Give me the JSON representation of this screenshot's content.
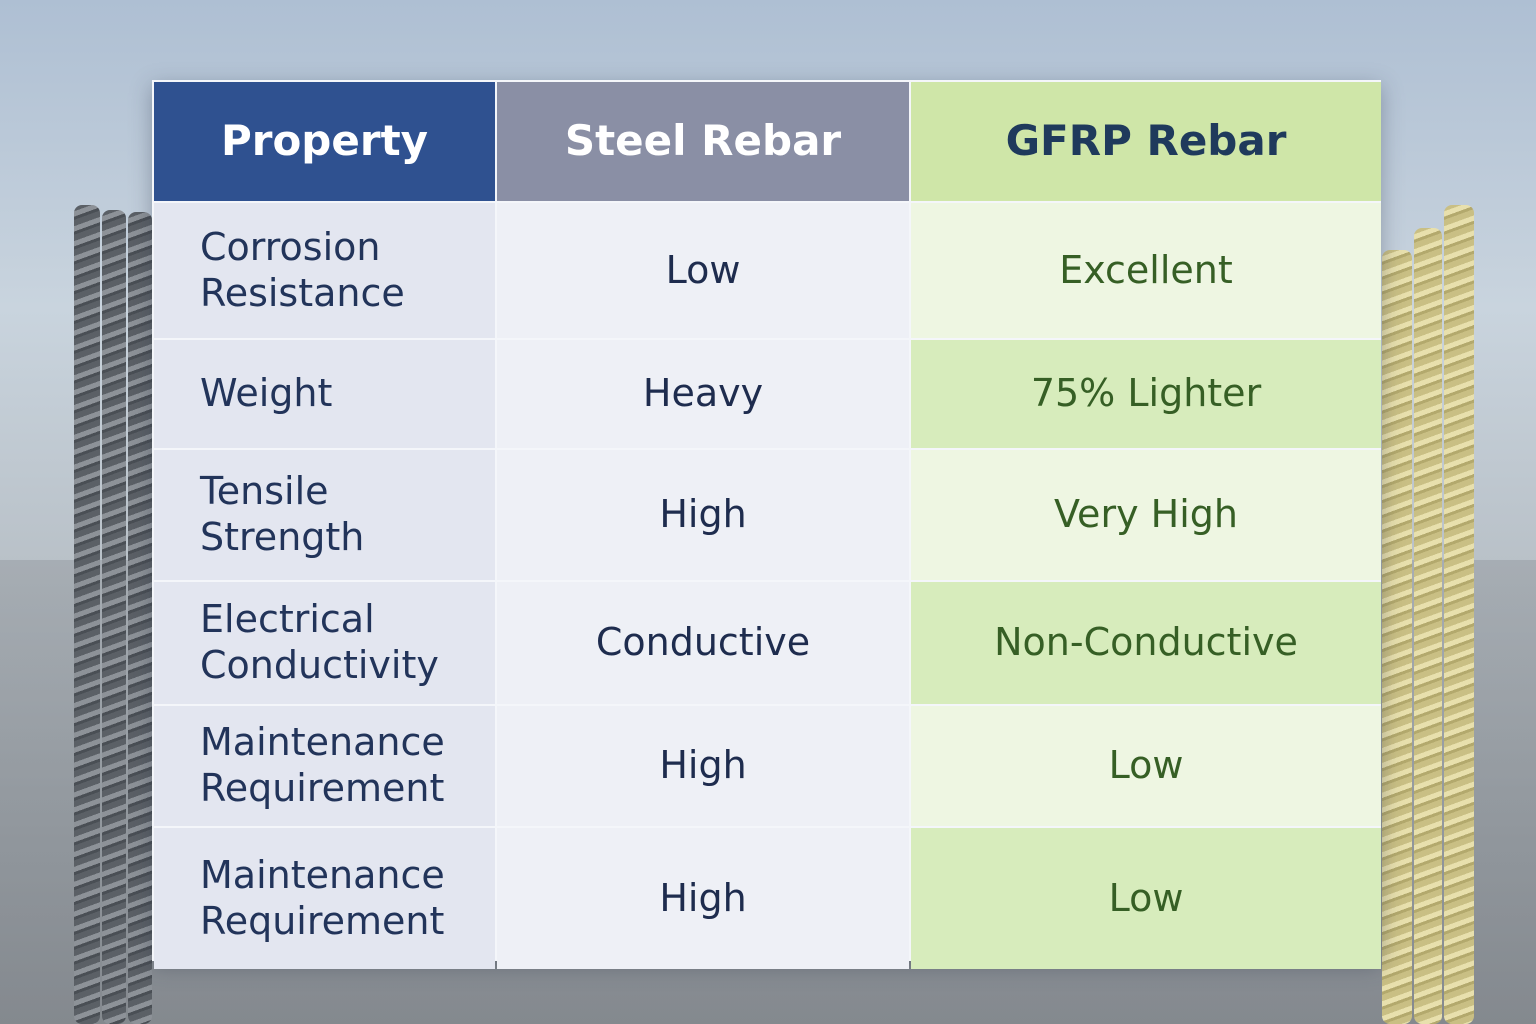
{
  "table": {
    "headers": [
      "Property",
      "Steel Rebar",
      "GFRP Rebar"
    ],
    "rows": [
      [
        "Corrosion Resistance",
        "Low",
        "Excellent"
      ],
      [
        "Weight",
        "Heavy",
        "75% Lighter"
      ],
      [
        "Tensile Strength",
        "High",
        "Very High"
      ],
      [
        "Electrical Conductivity",
        "Conductive",
        "Non-Conductive"
      ],
      [
        "Maintenance Requirement",
        "High",
        "Low"
      ],
      [
        "Maintenance Requirement",
        "High",
        "Low"
      ]
    ]
  }
}
